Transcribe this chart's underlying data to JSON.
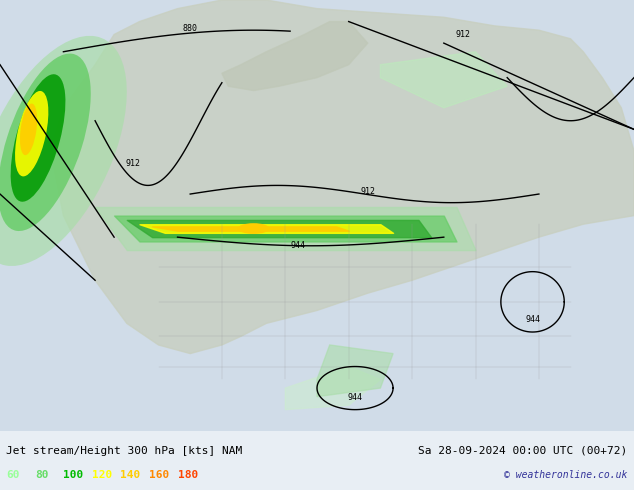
{
  "title_left": "Jet stream/Height 300 hPa [kts] NAM",
  "title_right": "Sa 28-09-2024 00:00 UTC (00+72)",
  "copyright": "© weatheronline.co.uk",
  "legend_values": [
    60,
    80,
    100,
    120,
    140,
    160,
    180
  ],
  "legend_colors": [
    "#99ff99",
    "#66dd66",
    "#00bb00",
    "#ffff00",
    "#ffcc00",
    "#ff8800",
    "#ff4400"
  ],
  "bg_color": "#d0d8e8",
  "map_bg": "#e8eef4",
  "fig_width": 6.34,
  "fig_height": 4.9,
  "bottom_bar_color": "#c8d4e0",
  "text_color": "#000000",
  "font_size_title": 8,
  "font_size_legend": 8,
  "font_size_copyright": 7
}
